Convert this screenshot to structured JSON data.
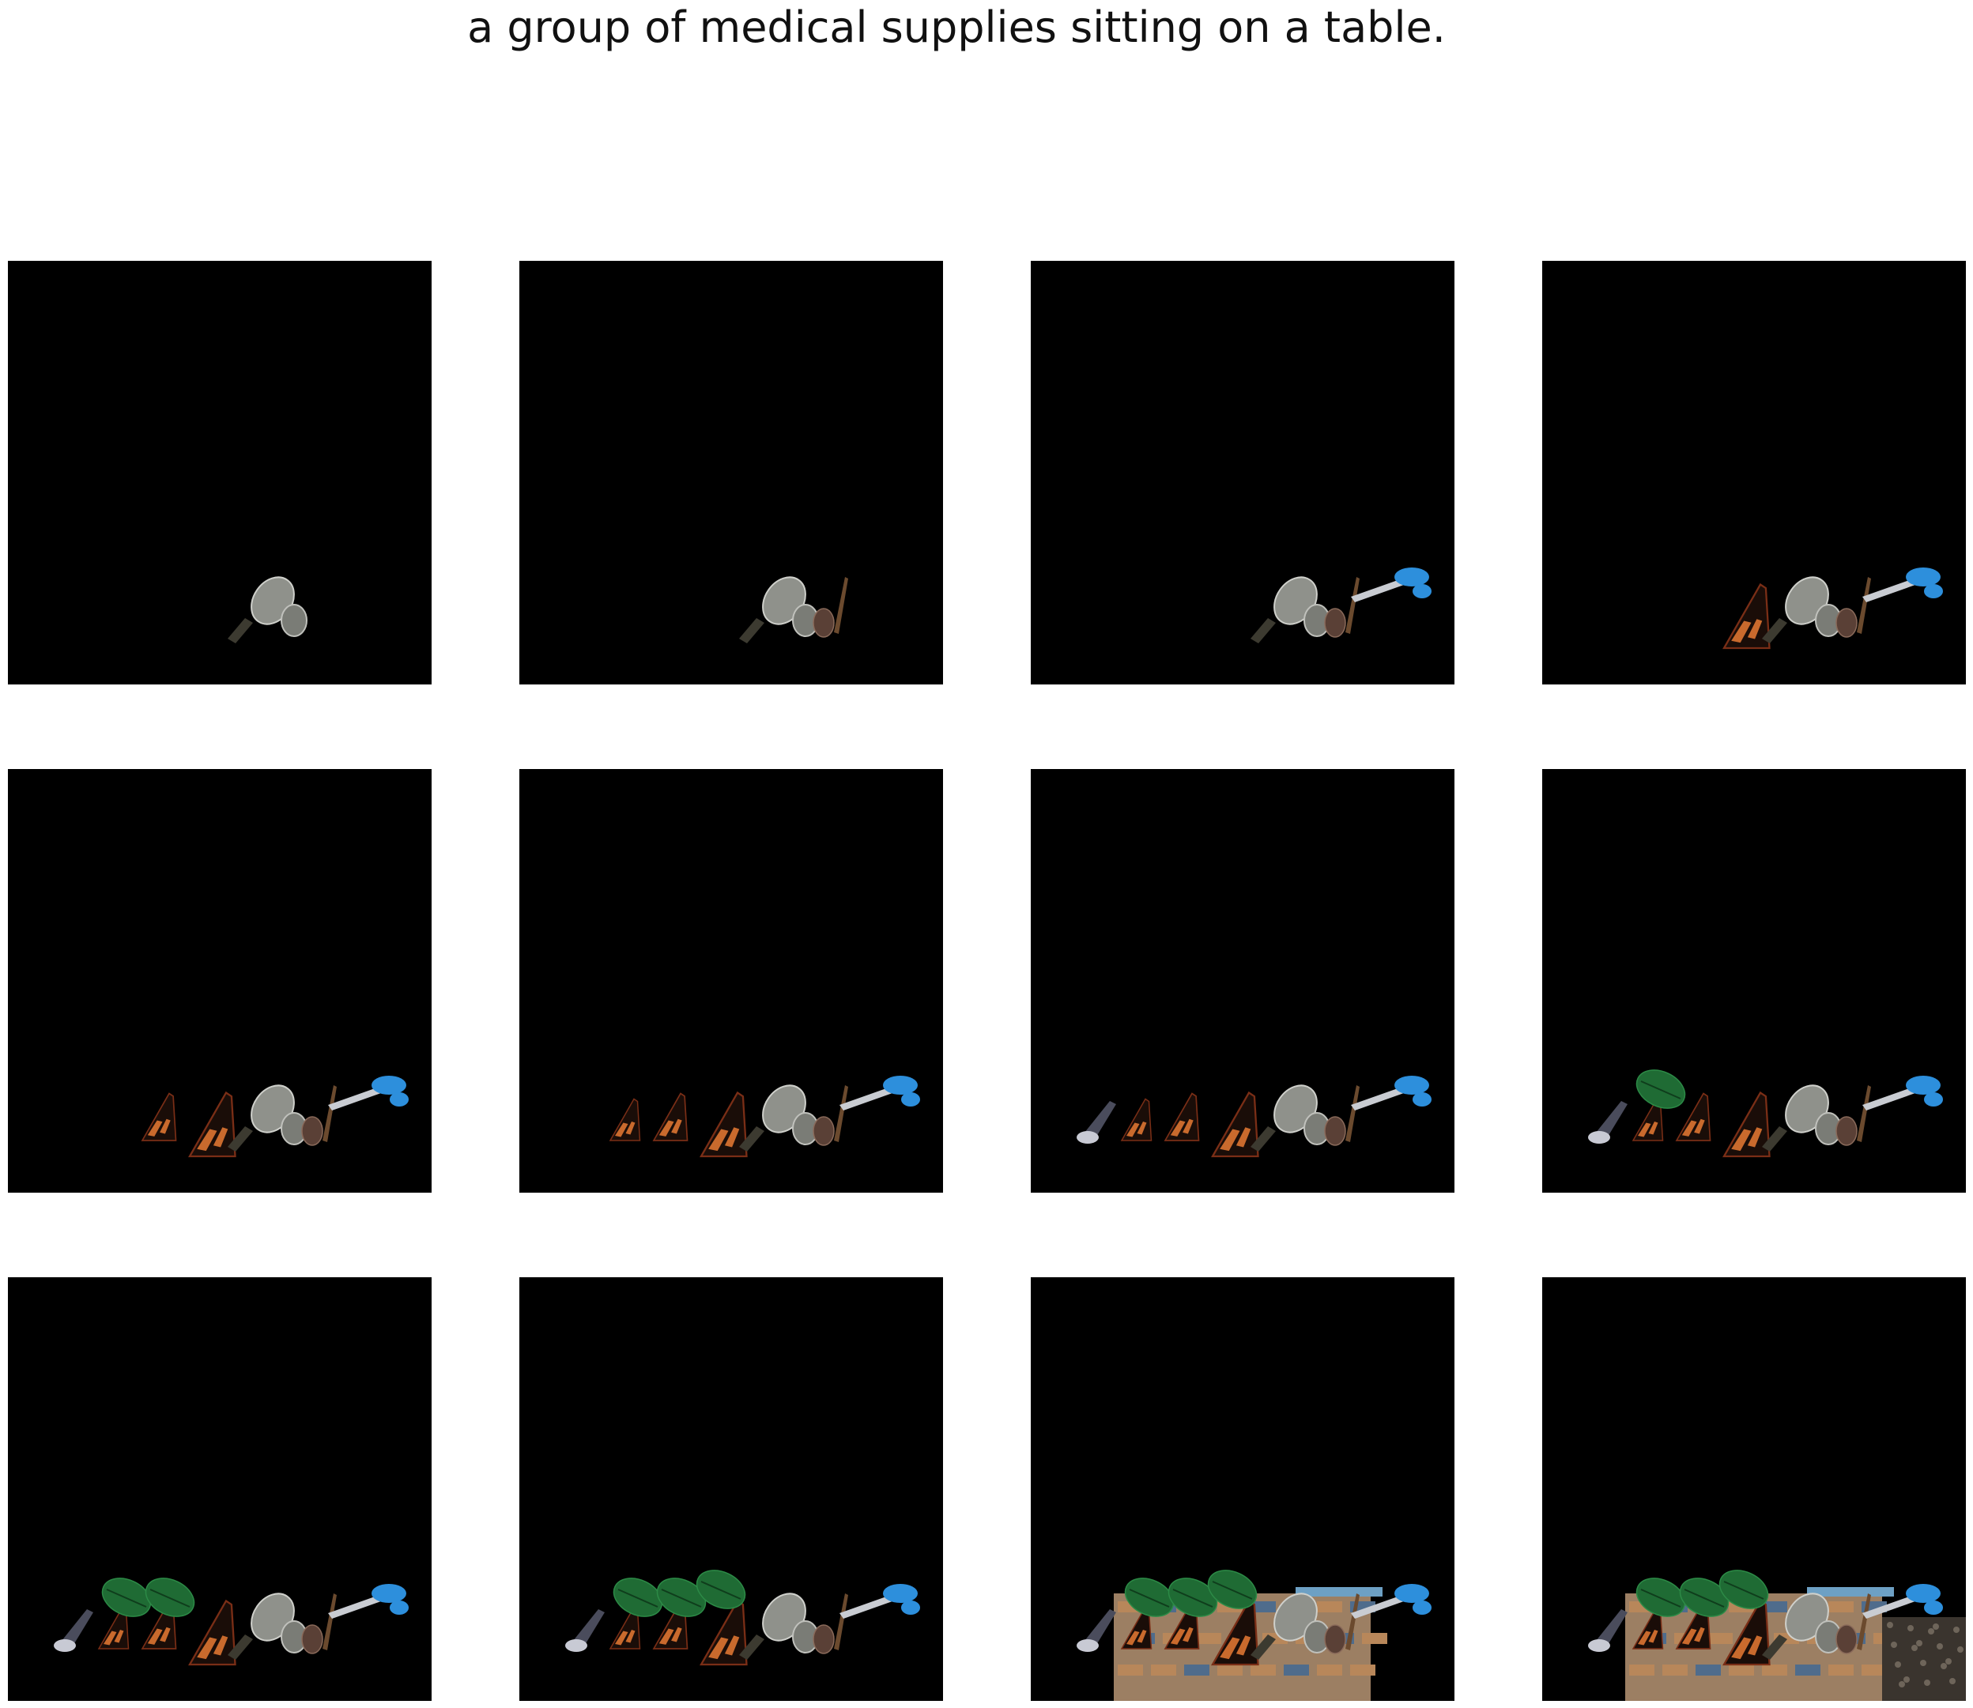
{
  "caption": "a group of medical supplies sitting on a table.",
  "colors": {
    "background": "#000000",
    "page": "#ffffff",
    "mirror": "#8f918b",
    "bottle": "#5a4036",
    "probe": "#6b4a2e",
    "scissors": "#2d8fdc",
    "orange_item": "#c96a2d",
    "green_leaf": "#1f6b34",
    "table_patch": "#9c7f63",
    "dark_patch": "#3a342e"
  },
  "panels": [
    {
      "items": [
        "mirror"
      ]
    },
    {
      "items": [
        "mirror",
        "bottle"
      ]
    },
    {
      "items": [
        "mirror",
        "bottle",
        "scissors"
      ]
    },
    {
      "items": [
        "mirror",
        "bottle",
        "scissors",
        "orange-1"
      ]
    },
    {
      "items": [
        "mirror",
        "bottle",
        "scissors",
        "orange-1",
        "orange-2"
      ]
    },
    {
      "items": [
        "mirror",
        "bottle",
        "scissors",
        "orange-1",
        "orange-2",
        "orange-3"
      ]
    },
    {
      "items": [
        "mirror",
        "bottle",
        "scissors",
        "orange-1",
        "orange-2",
        "orange-3",
        "dark-clip"
      ]
    },
    {
      "items": [
        "mirror",
        "bottle",
        "scissors",
        "orange-1",
        "orange-2",
        "orange-3",
        "dark-clip",
        "leaf-1"
      ]
    },
    {
      "items": [
        "mirror",
        "bottle",
        "scissors",
        "orange-1",
        "orange-2",
        "orange-3",
        "dark-clip",
        "leaf-1",
        "leaf-2"
      ]
    },
    {
      "items": [
        "mirror",
        "bottle",
        "scissors",
        "orange-1",
        "orange-2",
        "orange-3",
        "dark-clip",
        "leaf-1",
        "leaf-2",
        "leaf-3"
      ]
    },
    {
      "items": [
        "mirror",
        "bottle",
        "scissors",
        "orange-1",
        "orange-2",
        "orange-3",
        "dark-clip",
        "leaf-1",
        "leaf-2",
        "leaf-3",
        "table"
      ]
    },
    {
      "items": [
        "mirror",
        "bottle",
        "scissors",
        "orange-1",
        "orange-2",
        "orange-3",
        "dark-clip",
        "leaf-1",
        "leaf-2",
        "leaf-3",
        "table",
        "dark-patch"
      ]
    }
  ]
}
